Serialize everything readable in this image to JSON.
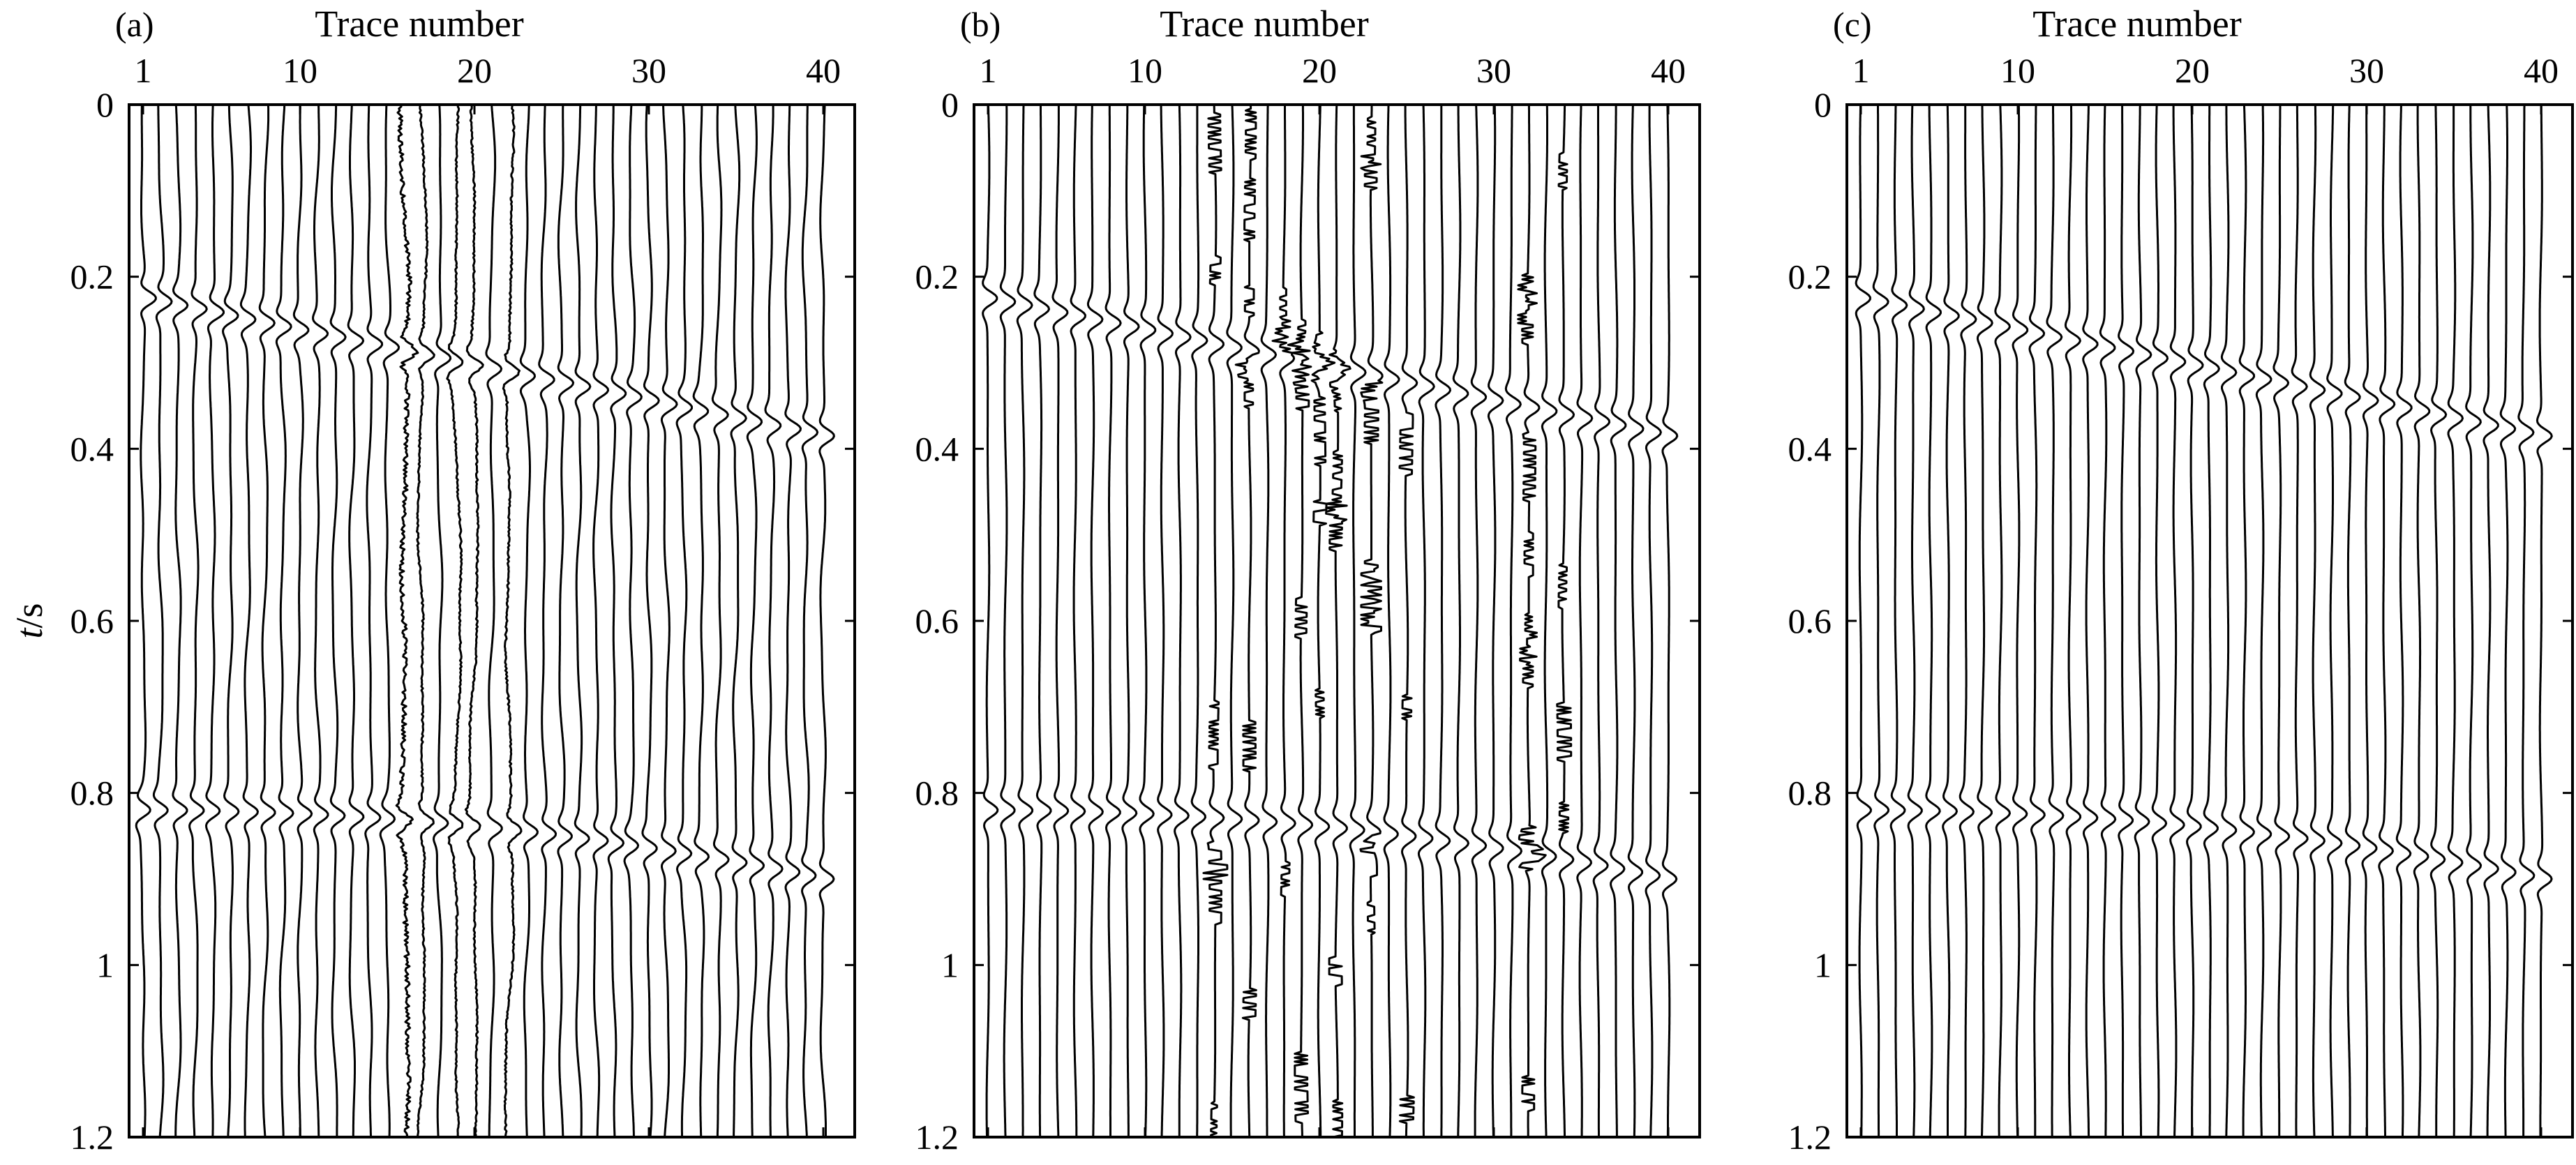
{
  "chart_data": [
    {
      "type": "line",
      "panel_label": "(a)",
      "xlabel": "Trace number",
      "ylabel_var": "t",
      "ylabel_unit": "/s",
      "x_ticks": [
        1,
        10,
        20,
        30,
        40
      ],
      "x_tick_labels": [
        "1",
        "10",
        "20",
        "30",
        "40"
      ],
      "y_ticks": [
        0,
        0.2,
        0.4,
        0.6,
        0.8,
        1,
        1.2
      ],
      "y_tick_labels": [
        "0",
        "0.2",
        "0.4",
        "0.6",
        "0.8",
        "1",
        "1.2"
      ],
      "xlim": [
        0.2,
        41.8
      ],
      "ylim": [
        0,
        1.2
      ],
      "traces": 40,
      "events": [
        {
          "t_start": 0.225,
          "t_end": 0.385,
          "type": "linear"
        },
        {
          "t_start": 0.82,
          "t_end": 0.9,
          "type": "curved"
        }
      ],
      "noise": "random",
      "noisy_traces": [
        16,
        17,
        19,
        20,
        22
      ]
    },
    {
      "type": "line",
      "panel_label": "(b)",
      "xlabel": "Trace number",
      "x_ticks": [
        1,
        10,
        20,
        30,
        40
      ],
      "x_tick_labels": [
        "1",
        "10",
        "20",
        "30",
        "40"
      ],
      "y_ticks": [
        0,
        0.2,
        0.4,
        0.6,
        0.8,
        1,
        1.2
      ],
      "y_tick_labels": [
        "0",
        "0.2",
        "0.4",
        "0.6",
        "0.8",
        "1",
        "1.2"
      ],
      "xlim": [
        0.2,
        41.8
      ],
      "ylim": [
        0,
        1.2
      ],
      "traces": 40,
      "events": [
        {
          "t_start": 0.225,
          "t_end": 0.385,
          "type": "linear"
        },
        {
          "t_start": 0.82,
          "t_end": 0.9,
          "type": "curved"
        }
      ],
      "noise": "bursts",
      "noisy_traces": [
        14,
        16,
        18,
        19,
        20,
        21,
        23,
        25,
        32,
        34
      ]
    },
    {
      "type": "line",
      "panel_label": "(c)",
      "xlabel": "Trace number",
      "x_ticks": [
        1,
        10,
        20,
        30,
        40
      ],
      "x_tick_labels": [
        "1",
        "10",
        "20",
        "30",
        "40"
      ],
      "y_ticks": [
        0,
        0.2,
        0.4,
        0.6,
        0.8,
        1,
        1.2
      ],
      "y_tick_labels": [
        "0",
        "0.2",
        "0.4",
        "0.6",
        "0.8",
        "1",
        "1.2"
      ],
      "xlim": [
        0.2,
        41.8
      ],
      "ylim": [
        0,
        1.2
      ],
      "traces": 40,
      "events": [
        {
          "t_start": 0.225,
          "t_end": 0.385,
          "type": "linear"
        },
        {
          "t_start": 0.82,
          "t_end": 0.9,
          "type": "curved"
        }
      ],
      "noise": "none",
      "noisy_traces": []
    }
  ]
}
